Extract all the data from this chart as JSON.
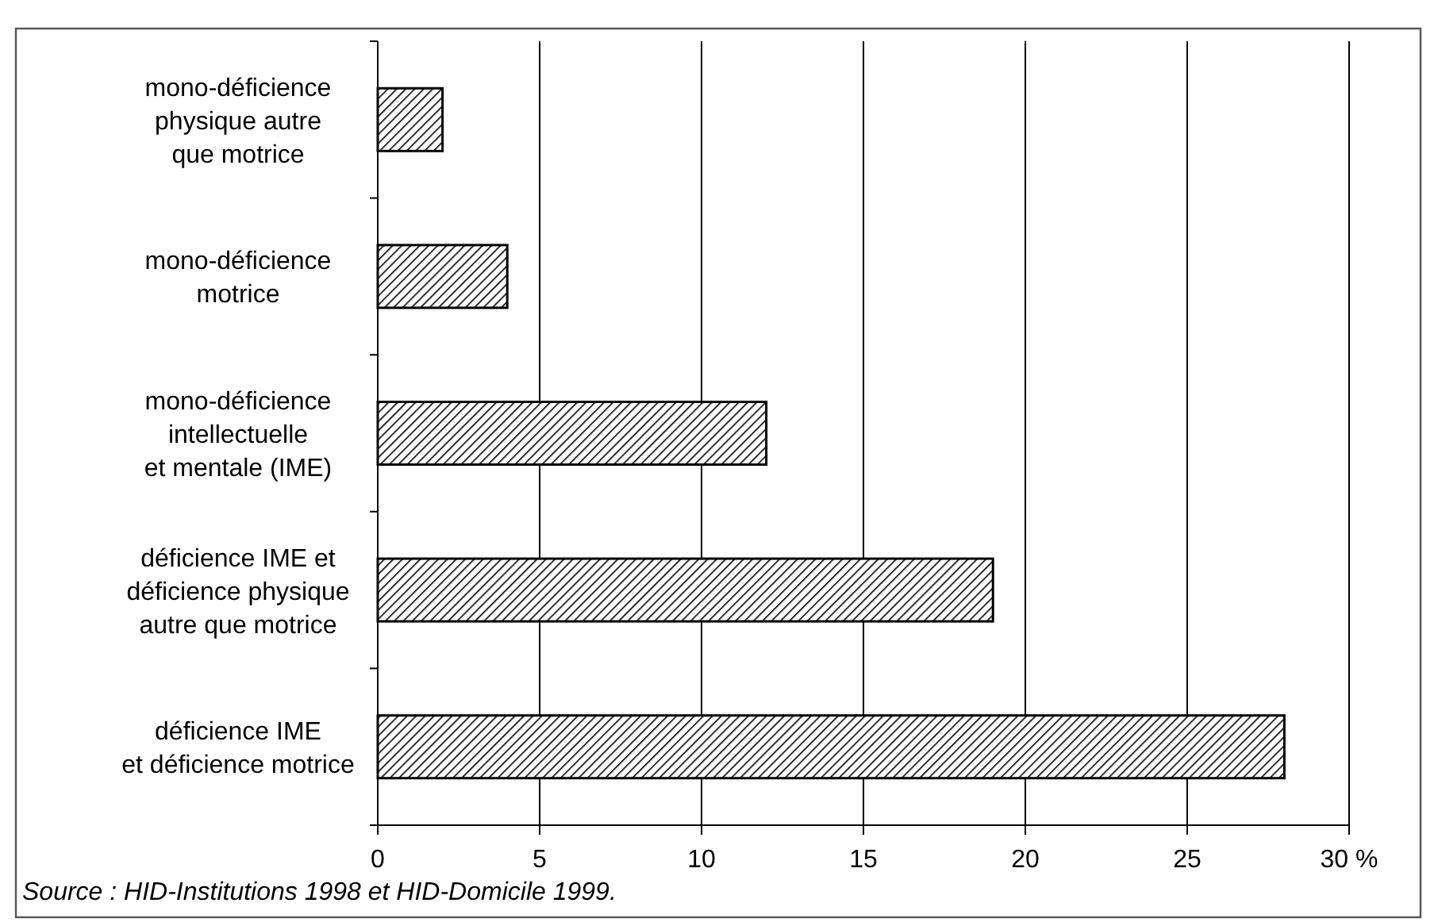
{
  "chart_data": {
    "type": "bar",
    "orientation": "horizontal",
    "categories": [
      "mono-déficience\nphysique autre\nque motrice",
      "mono-déficience\nmotrice",
      "mono-déficience\nintellectuelle\net mentale (IME)",
      "déficience IME et\ndéficience physique\nautre que motrice",
      "déficience IME\net déficience motrice"
    ],
    "values": [
      2,
      4,
      12,
      19,
      28
    ],
    "color": "#000000",
    "xlim": [
      0,
      30
    ],
    "xticks": [
      0,
      5,
      10,
      15,
      20,
      25,
      {
        "value": 30,
        "label": "30 %"
      }
    ],
    "grid": "x",
    "annotations": [
      "Source : HID-Institutions 1998 et HID-Domicile 1999."
    ]
  }
}
